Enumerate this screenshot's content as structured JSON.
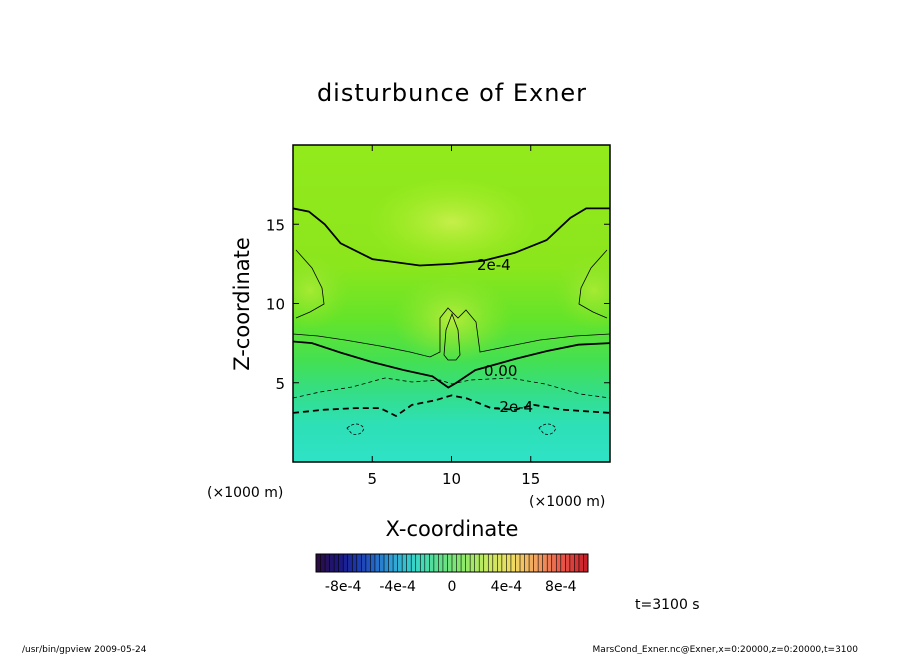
{
  "chart_data": {
    "type": "heatmap",
    "title": "disturbunce of Exner",
    "xlabel": "X-coordinate",
    "ylabel": "Z-coordinate",
    "x_unit_label": "(×1000 m)",
    "z_unit_label": "(×1000 m)",
    "xlim": [
      0,
      20
    ],
    "ylim": [
      0,
      20
    ],
    "x_ticks": [
      "5",
      "10",
      "15"
    ],
    "y_ticks": [
      "5",
      "10",
      "15"
    ],
    "x_tick_values": [
      5,
      10,
      15
    ],
    "y_tick_values": [
      5,
      10,
      15
    ],
    "contour_labels": [
      "2e-4",
      "0.00",
      "-2e-4"
    ],
    "contours": [
      {
        "value": "2e-4",
        "points": [
          [
            0,
            16
          ],
          [
            1,
            15.8
          ],
          [
            2,
            15
          ],
          [
            3,
            13.8
          ],
          [
            5,
            12.8
          ],
          [
            8,
            12.4
          ],
          [
            10,
            12.5
          ],
          [
            12,
            12.7
          ],
          [
            14,
            13.2
          ],
          [
            16,
            14
          ],
          [
            17.5,
            15.4
          ],
          [
            18.5,
            16
          ],
          [
            20,
            16
          ]
        ]
      },
      {
        "value": "0.00",
        "points": [
          [
            0,
            7.6
          ],
          [
            1.2,
            7.5
          ],
          [
            3,
            6.9
          ],
          [
            5,
            6.3
          ],
          [
            7,
            5.8
          ],
          [
            8.8,
            5.4
          ],
          [
            9.8,
            4.7
          ],
          [
            10.3,
            5.0
          ],
          [
            11.5,
            5.8
          ],
          [
            14,
            6.5
          ],
          [
            16,
            7
          ],
          [
            18,
            7.4
          ],
          [
            20,
            7.5
          ]
        ]
      },
      {
        "value": "-2e-4",
        "points": [
          [
            0,
            3.1
          ],
          [
            2,
            3.3
          ],
          [
            4,
            3.4
          ],
          [
            5.5,
            3.4
          ],
          [
            6.5,
            2.9
          ],
          [
            7.5,
            3.6
          ],
          [
            9,
            3.9
          ],
          [
            10,
            4.2
          ],
          [
            11,
            4.0
          ],
          [
            12.5,
            3.4
          ],
          [
            14,
            3.3
          ],
          [
            15.2,
            3.6
          ],
          [
            17,
            3.3
          ],
          [
            20,
            3.1
          ]
        ]
      }
    ],
    "colorbar": {
      "min": -0.001,
      "max": 0.001,
      "tick_labels": [
        "-8e-4",
        "-4e-4",
        "0",
        "4e-4",
        "8e-4"
      ],
      "tick_values": [
        -0.0008,
        -0.0004,
        0,
        0.0004,
        0.0008
      ],
      "colors": [
        "#2a0d45",
        "#1a1a8c",
        "#1f4fbf",
        "#2f9fd6",
        "#38d8c8",
        "#5fe08a",
        "#8fe86a",
        "#c9ea60",
        "#f0dc62",
        "#f2a060",
        "#e8584a",
        "#c8202a"
      ]
    }
  },
  "time_label": "t=3100 s",
  "footer": {
    "left": "/usr/bin/gpview   2009-05-24",
    "right": "MarsCond_Exner.nc@Exner,x=0:20000,z=0:20000,t=3100"
  }
}
